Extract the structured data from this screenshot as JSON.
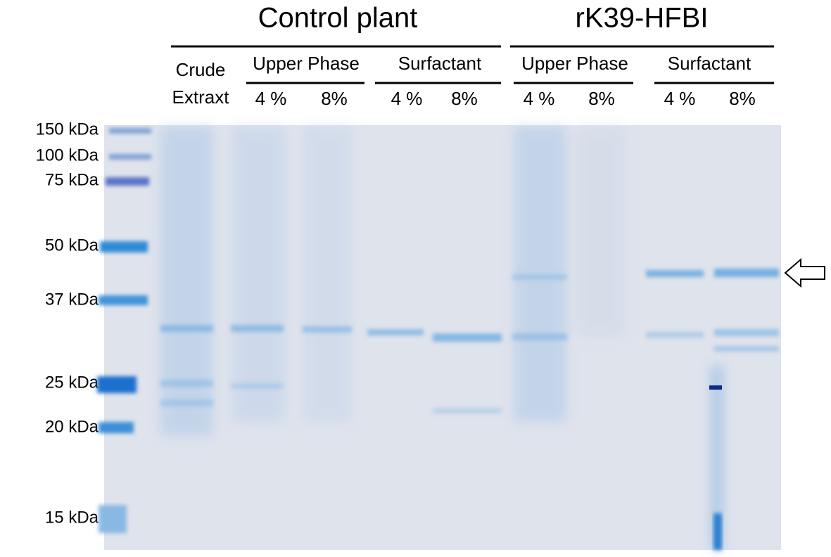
{
  "header": {
    "groups": [
      {
        "label": "Control plant",
        "subgroups": [
          {
            "label": "Upper Phase",
            "lanes": [
              "4 %",
              "8%"
            ]
          },
          {
            "label": "Surfactant",
            "lanes": [
              "4 %",
              "8%"
            ]
          }
        ]
      },
      {
        "label": "rK39-HFBI",
        "subgroups": [
          {
            "label": "Upper Phase",
            "lanes": [
              "4 %",
              "8%"
            ]
          },
          {
            "label": "Surfactant",
            "lanes": [
              "4 %",
              "8%"
            ]
          }
        ]
      }
    ],
    "crude": [
      "Crude",
      "Extraxt"
    ]
  },
  "markers": [
    "150 kDa",
    "100 kDa",
    "75 kDa",
    "50 kDa",
    "37 kDa",
    "25 kDa",
    "20 kDa",
    "15 kDa"
  ]
}
